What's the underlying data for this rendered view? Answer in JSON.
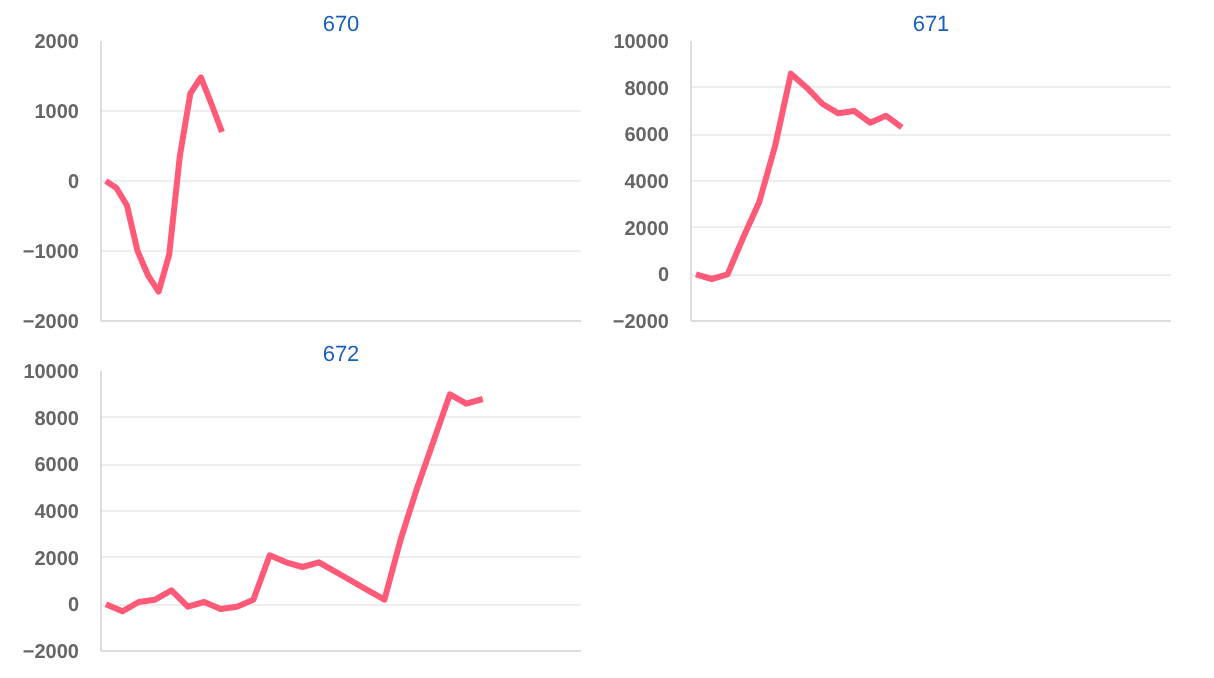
{
  "chart_data": [
    {
      "type": "line",
      "title": "670",
      "categories": [
        null,
        null,
        null,
        null,
        null,
        null,
        null,
        null,
        null,
        null,
        null,
        null,
        null,
        null,
        null,
        null,
        null,
        null,
        null,
        null,
        null,
        null,
        null,
        null,
        null,
        null,
        null,
        null,
        null,
        null,
        null,
        null,
        null,
        null,
        null,
        null,
        null,
        null,
        null,
        null,
        null,
        null,
        null,
        null,
        null,
        null
      ],
      "series": [
        {
          "color": "#ff5a78",
          "values": [
            0,
            -100,
            -350,
            -1000,
            -1350,
            -1580,
            -1050,
            350,
            1250,
            1480,
            1100,
            700,
            null,
            null,
            null,
            null,
            null,
            null,
            null,
            null,
            null,
            null,
            null,
            null,
            null,
            null,
            null,
            null,
            null,
            null,
            null,
            null,
            null,
            null,
            null,
            null,
            null,
            null,
            null,
            null,
            null,
            null,
            null,
            null,
            null,
            null
          ]
        }
      ],
      "ylim": [
        -2000,
        2000
      ],
      "yticks": [
        -2000,
        -1000,
        0,
        1000,
        2000
      ],
      "grid": "y",
      "tick_labels": "y",
      "marker": "none"
    },
    {
      "type": "line",
      "title": "671",
      "categories": [
        null,
        null,
        null,
        null,
        null,
        null,
        null,
        null,
        null,
        null,
        null,
        null,
        null,
        null,
        null,
        null,
        null,
        null,
        null,
        null,
        null,
        null,
        null,
        null,
        null,
        null,
        null,
        null,
        null,
        null,
        null
      ],
      "series": [
        {
          "color": "#ff5a78",
          "values": [
            0,
            -200,
            0,
            1600,
            3100,
            5500,
            8600,
            8000,
            7300,
            6900,
            7000,
            6500,
            6800,
            6300,
            null,
            null,
            null,
            null,
            null,
            null,
            null,
            null,
            null,
            null,
            null,
            null,
            null,
            null,
            null,
            null,
            null
          ]
        }
      ],
      "ylim": [
        -2000,
        10000
      ],
      "yticks": [
        -2000,
        0,
        2000,
        4000,
        6000,
        8000,
        10000
      ],
      "grid": "y",
      "tick_labels": "y",
      "marker": "none"
    },
    {
      "type": "line",
      "title": "672",
      "categories": [
        null,
        null,
        null,
        null,
        null,
        null,
        null,
        null,
        null,
        null,
        null,
        null,
        null,
        null,
        null,
        null,
        null,
        null,
        null,
        null,
        null,
        null,
        null,
        null,
        null,
        null,
        null,
        null,
        null,
        null
      ],
      "series": [
        {
          "color": "#ff5a78",
          "values": [
            0,
            -300,
            100,
            200,
            600,
            -100,
            100,
            -200,
            -100,
            200,
            2100,
            1800,
            1600,
            1800,
            1400,
            1000,
            600,
            200,
            2800,
            5000,
            7000,
            9000,
            8600,
            8800,
            null,
            null,
            null,
            null,
            null,
            null
          ]
        }
      ],
      "ylim": [
        -2000,
        10000
      ],
      "yticks": [
        -2000,
        0,
        2000,
        4000,
        6000,
        8000,
        10000
      ],
      "grid": "y",
      "tick_labels": "y",
      "marker": "none"
    }
  ]
}
